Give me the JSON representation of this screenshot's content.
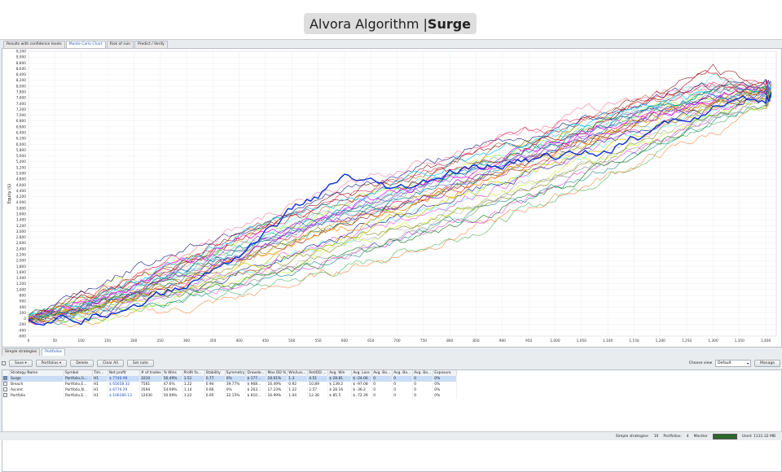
{
  "header": {
    "brand": "Alvora Algorithm | ",
    "strategy": "Surge"
  },
  "tabs": [
    {
      "label": "Results with confidence levels",
      "active": false
    },
    {
      "label": "Monte Carlo Chart",
      "active": true
    },
    {
      "label": "Risk of ruin",
      "active": false
    },
    {
      "label": "Predict / Verify",
      "active": false
    }
  ],
  "chart": {
    "ylabel": "Equity ($)",
    "y_ticks": [
      -600,
      -400,
      -200,
      0,
      200,
      400,
      600,
      800,
      1000,
      1200,
      1400,
      1600,
      1800,
      2000,
      2200,
      2400,
      2600,
      2800,
      3000,
      3200,
      3400,
      3600,
      3800,
      4000,
      4200,
      4400,
      4600,
      4800,
      5000,
      5200,
      5400,
      5600,
      5800,
      6000,
      6200,
      6400,
      6600,
      6800,
      7000,
      7200,
      7400,
      7600,
      7800,
      8000,
      8200,
      8400,
      8600,
      8800,
      9000,
      9200
    ],
    "y_tick_labels": [
      "-600",
      "-400",
      "-200",
      "0",
      "200",
      "400",
      "600",
      "800",
      "1,000",
      "1,200",
      "1,400",
      "1,600",
      "1,800",
      "2,000",
      "2,200",
      "2,400",
      "2,600",
      "2,800",
      "3,000",
      "3,200",
      "3,400",
      "3,600",
      "3,800",
      "4,000",
      "4,200",
      "4,400",
      "4,600",
      "4,800",
      "5,000",
      "5,200",
      "5,400",
      "5,600",
      "5,800",
      "6,000",
      "6,200",
      "6,400",
      "6,600",
      "6,800",
      "7,000",
      "7,200",
      "7,400",
      "7,600",
      "7,800",
      "8,000",
      "8,200",
      "8,400",
      "8,600",
      "8,800",
      "9,000",
      "9,200"
    ],
    "x_ticks": [
      0,
      50,
      100,
      150,
      200,
      250,
      300,
      350,
      400,
      450,
      500,
      550,
      600,
      650,
      700,
      750,
      800,
      850,
      900,
      950,
      1000,
      1050,
      1100,
      1150,
      1200,
      1250,
      1300,
      1350,
      1400
    ],
    "x_tick_labels": [
      "0",
      "50",
      "100",
      "150",
      "200",
      "250",
      "300",
      "350",
      "400",
      "450",
      "500",
      "550",
      "600",
      "650",
      "700",
      "750",
      "800",
      "850",
      "900",
      "950",
      "1,000",
      "1,050",
      "1,100",
      "1,150",
      "1,200",
      "1,250",
      "1,300",
      "1,350",
      "1,400"
    ]
  },
  "chart_data": {
    "type": "line",
    "title": "",
    "xlabel": "",
    "ylabel": "Equity ($)",
    "xlim": [
      0,
      1420
    ],
    "ylim": [
      -600,
      9200
    ],
    "grid": true,
    "x": [
      0,
      100,
      200,
      300,
      400,
      500,
      600,
      700,
      800,
      900,
      1000,
      1100,
      1200,
      1300,
      1400,
      1410
    ],
    "series": [
      {
        "values": [
          0,
          -50,
          550,
          1100,
          2250,
          3700,
          4800,
          4300,
          4950,
          5300,
          5600,
          5850,
          6550,
          7200,
          7450,
          7800
        ],
        "color": "#0b2ed6",
        "highlight": true
      },
      {
        "values": [
          0,
          700,
          1150,
          1800,
          2700,
          3400,
          4000,
          4550,
          5100,
          5700,
          6300,
          7000,
          7600,
          8400,
          7800,
          7700
        ],
        "color": "#b41e1e"
      },
      {
        "values": [
          0,
          250,
          750,
          1000,
          1250,
          1700,
          2100,
          2700,
          3200,
          3800,
          4500,
          5300,
          6200,
          7000,
          7700,
          7800
        ],
        "color": "#2b8a2b"
      },
      {
        "values": [
          0,
          600,
          1300,
          2000,
          2600,
          3100,
          3800,
          4300,
          5000,
          5500,
          6000,
          6600,
          7200,
          7600,
          7900,
          7800
        ],
        "color": "#ff00ff"
      },
      {
        "values": [
          0,
          200,
          500,
          800,
          1200,
          1700,
          2300,
          2800,
          3400,
          4000,
          4700,
          5400,
          6100,
          6800,
          7500,
          7800
        ],
        "color": "#9a9a9a"
      },
      {
        "values": [
          0,
          500,
          1200,
          2000,
          2800,
          3500,
          4100,
          4700,
          5300,
          5900,
          6400,
          7000,
          7500,
          7800,
          7900,
          7800
        ],
        "color": "#00c8ff"
      },
      {
        "values": [
          0,
          300,
          700,
          1300,
          1900,
          2500,
          3100,
          3700,
          4300,
          5000,
          5600,
          6300,
          6900,
          7400,
          7800,
          7800
        ],
        "color": "#ff8c00"
      },
      {
        "values": [
          0,
          400,
          900,
          1500,
          2100,
          2800,
          3400,
          4000,
          4600,
          5200,
          5800,
          6500,
          7100,
          7600,
          7900,
          7800
        ],
        "color": "#8a2be2"
      },
      {
        "values": [
          0,
          150,
          600,
          1100,
          1600,
          2200,
          2900,
          3500,
          4100,
          4700,
          5300,
          6000,
          6700,
          7300,
          7700,
          7800
        ],
        "color": "#c8c800"
      },
      {
        "values": [
          0,
          350,
          1000,
          1700,
          2400,
          3000,
          3600,
          4200,
          4800,
          5400,
          6100,
          6700,
          7300,
          7700,
          7950,
          7800
        ],
        "color": "#008b8b"
      }
    ]
  },
  "bottom_tabs": [
    {
      "label": "Simple strategies",
      "active": false
    },
    {
      "label": "Portfolios",
      "active": true
    }
  ],
  "toolbar": {
    "save": "Save",
    "portfolios": "Portfolios",
    "delete": "Delete",
    "clear_all": "Clear All",
    "set_note": "Set note",
    "choose_view_label": "Choose view",
    "view_value": "Default",
    "manage": "Manage"
  },
  "table": {
    "columns": [
      "Strategy Name",
      "Symbol",
      "Tim...",
      "Net profit",
      "# of trades",
      "% Wins",
      "Profit fa...",
      "Stability",
      "Symmetry",
      "Drawdo...",
      "Max DD %",
      "Win/Los...",
      "Ret/DD ...",
      "Avg. Win",
      "Avg. Loss",
      "Avg. Ba...",
      "Avg. Ba...",
      "Avg. Ba...",
      "Exposure"
    ],
    "rows": [
      {
        "checked": true,
        "selected": true,
        "cells": [
          "Surge",
          "Portfolio,G...",
          "H1",
          "$ 7746.98",
          "1010",
          "56.49%",
          "1.51",
          "0.77",
          "0%",
          "$ 177...",
          "18.01%",
          "1.3",
          "4.51",
          "$ 28.81",
          "$ -24.06",
          "0",
          "0",
          "0",
          "0%"
        ]
      },
      {
        "checked": false,
        "selected": false,
        "cells": [
          "Breach",
          "Portfolio,E...",
          "H1",
          "$ 65658.32",
          "7561",
          "47.6%",
          "1.22",
          "0.94",
          "39.77%",
          "$ 968...",
          "16.49%",
          "0.92",
          "10.89",
          "$ 139.2",
          "$ -97.08",
          "0",
          "0",
          "0",
          "0%"
        ]
      },
      {
        "checked": false,
        "selected": false,
        "cells": [
          "Ascent",
          "Portfolio,N...",
          "H1",
          "$ 6776.29",
          "3594",
          "54.69%",
          "1.14",
          "0.66",
          "0%",
          "$ 263...",
          "17.23%",
          "1.22",
          "2.57",
          "$ 28.16",
          "$ -36.2",
          "0",
          "0",
          "0",
          "0%"
        ]
      },
      {
        "checked": false,
        "selected": false,
        "cells": [
          "Portfolio",
          "Portfolio,E...",
          "H1",
          "$ 106180.13",
          "12030",
          "50.09%",
          "1.22",
          "0.95",
          "32.15%",
          "$ 810...",
          "16.99%",
          "1.04",
          "12.36",
          "$ 85.5",
          "$ -72.39",
          "0",
          "0",
          "0",
          "0%"
        ]
      }
    ]
  },
  "status": {
    "simple_label": "Simple strategies:",
    "simple_value": "10",
    "portfolios_label": "Portfolios:",
    "portfolios_value": "4",
    "monitor_label": "Monitor",
    "used": "Used: 1131.32 MB"
  }
}
